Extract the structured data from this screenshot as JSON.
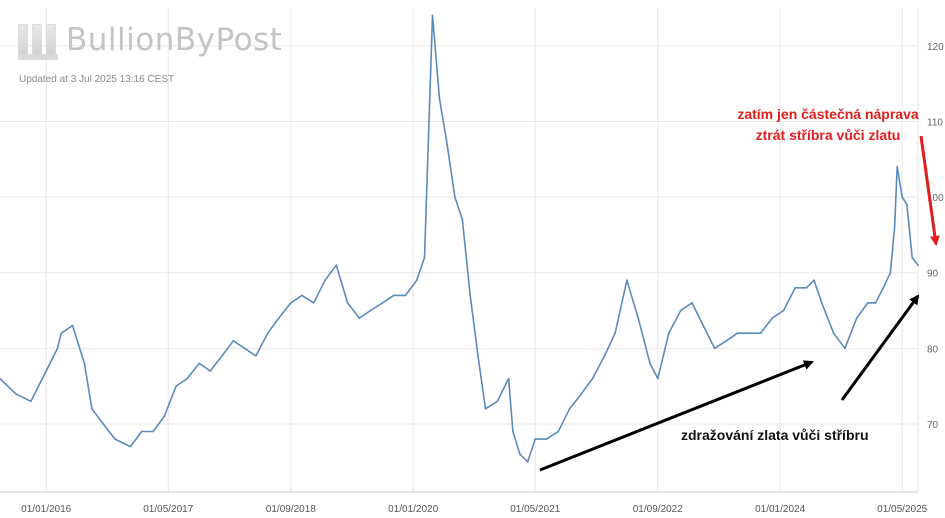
{
  "brand": {
    "name": "BullionByPost"
  },
  "updated_text": "Updated at 3 Jul 2025 13:16 CEST",
  "annotations": {
    "red_line1": "zatím jen částečná náprava",
    "red_line2": "ztrát stříbra vůči zlatu",
    "black": "zdražování zlata vůči stříbru"
  },
  "colors": {
    "line": "#5b8bbd",
    "grid": "#e6e6e6",
    "red": "#e01e1e",
    "arrow": "#000000"
  },
  "chart_data": {
    "type": "line",
    "title": "",
    "xlabel": "",
    "ylabel": "",
    "ylim": [
      61,
      125
    ],
    "yticks": [
      70,
      80,
      90,
      100,
      110,
      120
    ],
    "xticks": [
      "01/01/2016",
      "01/05/2017",
      "01/09/2018",
      "01/01/2020",
      "01/05/2021",
      "01/09/2022",
      "01/01/2024",
      "01/05/2025"
    ],
    "xlim": [
      "2015-07-01",
      "2025-07-03"
    ],
    "grid": true,
    "series": [
      {
        "x": [
          "2015-07-01",
          "2015-09-01",
          "2015-11-01",
          "2016-01-01",
          "2016-02-15",
          "2016-03-01",
          "2016-04-15",
          "2016-06-01",
          "2016-07-01",
          "2016-08-15",
          "2016-10-01",
          "2016-12-01",
          "2017-01-15",
          "2017-03-01",
          "2017-04-15",
          "2017-06-01",
          "2017-07-15",
          "2017-09-01",
          "2017-10-15",
          "2017-12-01",
          "2018-01-15",
          "2018-03-01",
          "2018-04-15",
          "2018-06-01",
          "2018-07-15",
          "2018-09-01",
          "2018-10-15",
          "2018-12-01",
          "2019-01-15",
          "2019-03-01",
          "2019-04-15",
          "2019-06-01",
          "2019-07-15",
          "2019-09-01",
          "2019-10-15",
          "2019-12-01",
          "2020-01-15",
          "2020-02-15",
          "2020-03-18",
          "2020-04-15",
          "2020-05-15",
          "2020-06-15",
          "2020-07-15",
          "2020-08-15",
          "2020-09-15",
          "2020-10-15",
          "2020-12-01",
          "2021-01-15",
          "2021-02-01",
          "2021-03-01",
          "2021-04-01",
          "2021-05-01",
          "2021-06-15",
          "2021-08-01",
          "2021-09-15",
          "2021-11-01",
          "2021-12-15",
          "2022-02-01",
          "2022-03-15",
          "2022-05-01",
          "2022-06-15",
          "2022-08-01",
          "2022-09-01",
          "2022-10-15",
          "2022-12-01",
          "2023-01-15",
          "2023-03-01",
          "2023-04-15",
          "2023-06-01",
          "2023-07-15",
          "2023-09-01",
          "2023-10-15",
          "2023-12-01",
          "2024-01-15",
          "2024-03-01",
          "2024-04-15",
          "2024-05-15",
          "2024-06-15",
          "2024-08-01",
          "2024-09-15",
          "2024-11-01",
          "2024-12-15",
          "2025-01-15",
          "2025-02-15",
          "2025-03-15",
          "2025-04-01",
          "2025-04-11",
          "2025-05-01",
          "2025-05-20",
          "2025-06-10",
          "2025-07-03"
        ],
        "values": [
          76,
          74,
          73,
          77,
          80,
          82,
          83,
          78,
          72,
          70,
          68,
          67,
          69,
          69,
          71,
          75,
          76,
          78,
          77,
          79,
          81,
          80,
          79,
          82,
          84,
          86,
          87,
          86,
          89,
          91,
          86,
          84,
          85,
          86,
          87,
          87,
          89,
          92,
          124,
          113,
          107,
          100,
          97,
          87,
          79,
          72,
          73,
          76,
          69,
          66,
          65,
          68,
          68,
          69,
          72,
          74,
          76,
          79,
          82,
          89,
          84,
          78,
          76,
          82,
          85,
          86,
          83,
          80,
          81,
          82,
          82,
          82,
          84,
          85,
          88,
          88,
          89,
          86,
          82,
          80,
          84,
          86,
          86,
          88,
          90,
          96,
          104,
          100,
          99,
          92,
          91
        ]
      }
    ]
  }
}
